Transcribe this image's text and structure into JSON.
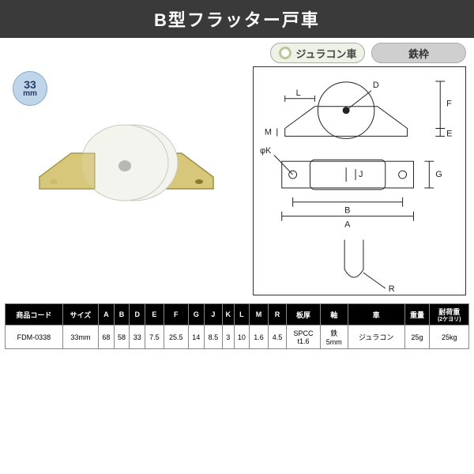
{
  "title": {
    "text": "B型フラッター戸車",
    "bg": "#3a3a3a",
    "fg": "#ffffff"
  },
  "badges": {
    "wheel": {
      "label": "ジュラコン車",
      "bg": "#eef2e6",
      "fg": "#444444",
      "ring_outer": "#b9c99b",
      "ring_inner": "#ffffff"
    },
    "frame": {
      "label": "鉄枠",
      "bg": "#cfcfcf",
      "fg": "#333333"
    }
  },
  "size_disc": {
    "value": "33",
    "unit": "mm",
    "bg": "#bfd5ea",
    "fg": "#2a3a66",
    "border": "#8aa7c7"
  },
  "photo": {
    "bracket_color": "#d7c77a",
    "bracket_edge": "#9c8f3f",
    "wheel_color": "#f4f4ef",
    "wheel_edge": "#c9c9bf",
    "rivet_color": "#b8b8b0"
  },
  "diagram": {
    "stroke": "#222222",
    "fill": "#ffffff",
    "labels": {
      "A": "A",
      "B": "B",
      "D": "D",
      "E": "E",
      "F": "F",
      "G": "G",
      "J": "J",
      "K": "φK",
      "L": "L",
      "M": "M",
      "R": "R"
    }
  },
  "table": {
    "header_bg": "#000000",
    "header_fg": "#ffffff",
    "row_bg": "#ffffff",
    "columns": [
      "商品コード",
      "サイズ",
      "A",
      "B",
      "D",
      "E",
      "F",
      "G",
      "J",
      "K",
      "L",
      "M",
      "R",
      "板厚",
      "軸",
      "車",
      "重量",
      "耐荷重"
    ],
    "col_sub": {
      "17": "(2ケヨリ)"
    },
    "rows": [
      [
        "FDM-0338",
        "33mm",
        "68",
        "58",
        "33",
        "7.5",
        "25.5",
        "14",
        "8.5",
        "3",
        "10",
        "1.6",
        "4.5",
        "SPCC\nt1.6",
        "鉄\n5mm",
        "ジュラコン",
        "25g",
        "25kg"
      ]
    ]
  }
}
